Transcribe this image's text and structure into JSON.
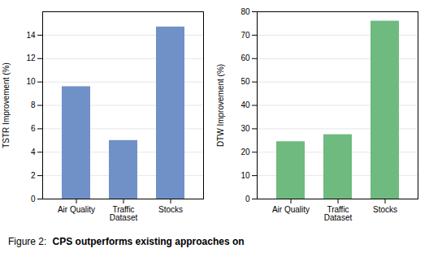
{
  "chart_data": [
    {
      "type": "bar",
      "categories": [
        "Air Quality",
        "Traffic\nDataset",
        "Stocks"
      ],
      "values": [
        9.6,
        5.0,
        14.7
      ],
      "color": "#7090c8",
      "ylabel": "TSTR Improvement (%)",
      "ylim": [
        0,
        16
      ],
      "yticks": [
        0,
        2,
        4,
        6,
        8,
        10,
        12,
        14
      ],
      "grid": true
    },
    {
      "type": "bar",
      "categories": [
        "Air Quality",
        "Traffic\nDataset",
        "Stocks"
      ],
      "values": [
        24.5,
        27.5,
        76.0
      ],
      "color": "#6fba7f",
      "ylabel": "DTW Improvement (%)",
      "ylim": [
        0,
        80
      ],
      "yticks": [
        0,
        10,
        20,
        30,
        40,
        50,
        60,
        70,
        80
      ],
      "grid": true
    }
  ],
  "caption": [
    "Figure 2:",
    "CPS outperforms existing approaches on"
  ]
}
